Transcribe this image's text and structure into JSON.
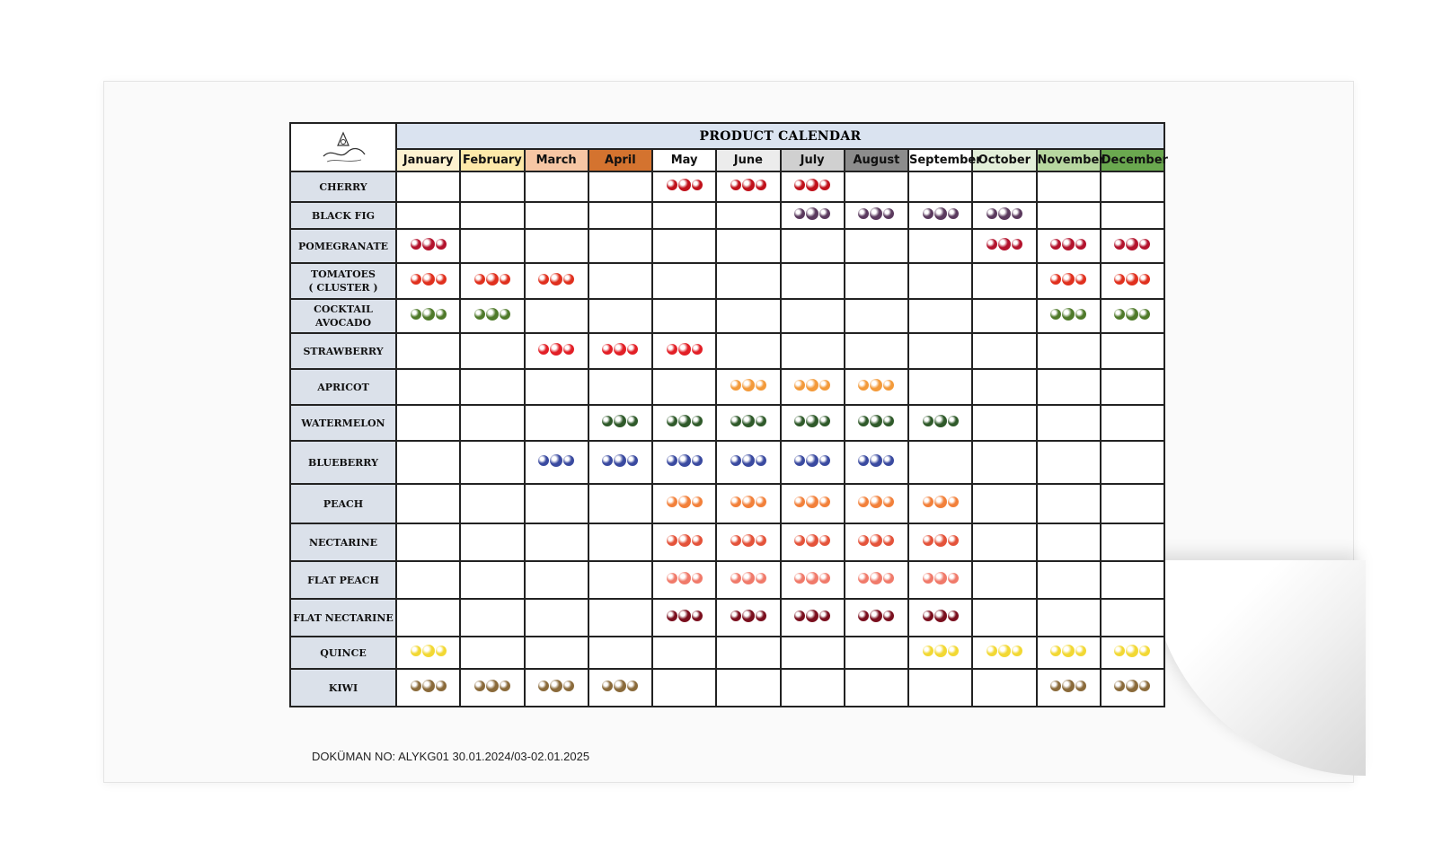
{
  "title": "PRODUCT CALENDAR",
  "footer": "DOKÜMAN NO: ALYKG01 30.01.2024/03-02.01.2025",
  "months": [
    {
      "label": "January",
      "color": "#fdf2d0"
    },
    {
      "label": "February",
      "color": "#fde9a9"
    },
    {
      "label": "March",
      "color": "#f6c6a4"
    },
    {
      "label": "April",
      "color": "#d4732f"
    },
    {
      "label": "May",
      "color": "#ffffff"
    },
    {
      "label": "June",
      "color": "#ececec"
    },
    {
      "label": "July",
      "color": "#d0d0d0"
    },
    {
      "label": "August",
      "color": "#8c8c8c"
    },
    {
      "label": "September",
      "color": "#ffffff"
    },
    {
      "label": "October",
      "color": "#e3efd9"
    },
    {
      "label": "November",
      "color": "#b7d7a0"
    },
    {
      "label": "December",
      "color": "#6aa84f"
    }
  ],
  "products": [
    {
      "name": "CHERRY",
      "icon": "cherry-icon",
      "color": "#c0111b",
      "months": [
        5,
        6,
        7
      ]
    },
    {
      "name": "BLACK FIG",
      "icon": "fig-icon",
      "color": "#5b3a5e",
      "months": [
        7,
        8,
        9,
        10
      ]
    },
    {
      "name": "POMEGRANATE",
      "icon": "pomegranate-icon",
      "color": "#b3132d",
      "months": [
        1,
        10,
        11,
        12
      ]
    },
    {
      "name": "TOMATOES\n( CLUSTER )",
      "icon": "tomato-icon",
      "color": "#e0301e",
      "months": [
        1,
        2,
        3,
        11,
        12
      ]
    },
    {
      "name": "COCKTAIL\nAVOCADO",
      "icon": "avocado-icon",
      "color": "#4f7a2a",
      "months": [
        1,
        2,
        11,
        12
      ]
    },
    {
      "name": "STRAWBERRY",
      "icon": "strawberry-icon",
      "color": "#e21f26",
      "months": [
        3,
        4,
        5
      ]
    },
    {
      "name": "APRICOT",
      "icon": "apricot-icon",
      "color": "#f39a3a",
      "months": [
        6,
        7,
        8
      ]
    },
    {
      "name": "WATERMELON",
      "icon": "watermelon-icon",
      "color": "#2f5a2a",
      "months": [
        4,
        5,
        6,
        7,
        8,
        9
      ]
    },
    {
      "name": "BLUEBERRY",
      "icon": "blueberry-icon",
      "color": "#3a4aa0",
      "months": [
        3,
        4,
        5,
        6,
        7,
        8
      ]
    },
    {
      "name": "PEACH",
      "icon": "peach-icon",
      "color": "#f2803a",
      "months": [
        5,
        6,
        7,
        8,
        9
      ]
    },
    {
      "name": "NECTARINE",
      "icon": "nectarine-icon",
      "color": "#e4533a",
      "months": [
        5,
        6,
        7,
        8,
        9
      ]
    },
    {
      "name": "FLAT PEACH",
      "icon": "flat-peach-icon",
      "color": "#f07a6a",
      "months": [
        5,
        6,
        7,
        8,
        9
      ]
    },
    {
      "name": "FLAT NECTARINE",
      "icon": "flat-nectarine-icon",
      "color": "#7a0f1e",
      "months": [
        5,
        6,
        7,
        8,
        9
      ]
    },
    {
      "name": "QUINCE",
      "icon": "quince-icon",
      "color": "#f2d833",
      "months": [
        1,
        9,
        10,
        11,
        12
      ]
    },
    {
      "name": "KIWI",
      "icon": "kiwi-icon",
      "color": "#8a6a3a",
      "months": [
        1,
        2,
        3,
        4,
        11,
        12
      ]
    }
  ]
}
